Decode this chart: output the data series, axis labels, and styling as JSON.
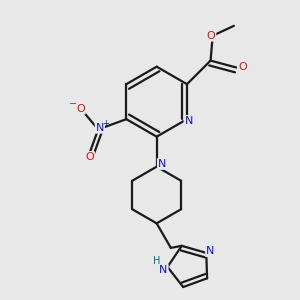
{
  "background_color": "#e8e8e8",
  "bond_color": "#1a1a1a",
  "bond_width": 1.6,
  "atom_colors": {
    "C": "#1a1a1a",
    "N": "#1010dd",
    "O": "#dd1010",
    "H": "#007070"
  },
  "figsize": [
    3.0,
    3.0
  ],
  "dpi": 100
}
